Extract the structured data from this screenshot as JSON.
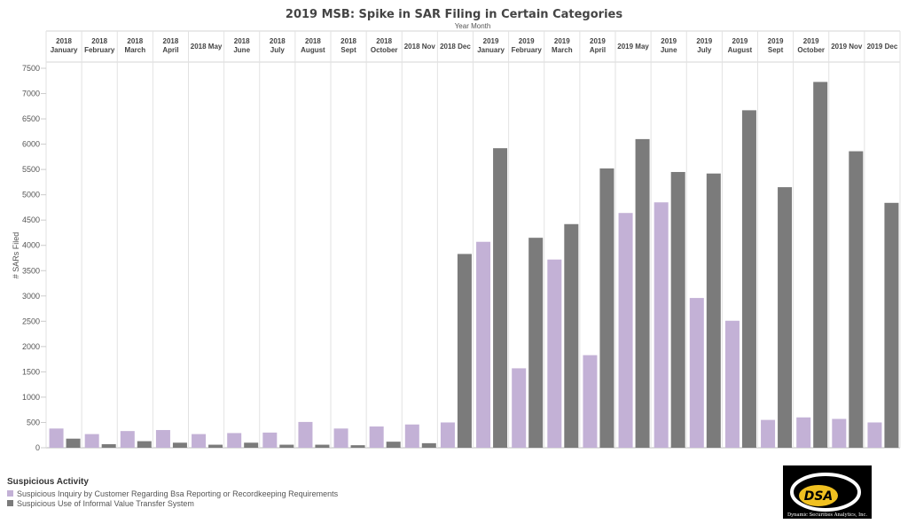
{
  "chart_data": {
    "type": "bar",
    "title": "2019 MSB: Spike in SAR Filing in Certain Categories",
    "top_axis_label": "Year Month",
    "ylabel": "# SARs Filed",
    "ylim": [
      0,
      7500
    ],
    "yticks": [
      0,
      500,
      1000,
      1500,
      2000,
      2500,
      3000,
      3500,
      4000,
      4500,
      5000,
      5500,
      6000,
      6500,
      7000,
      7500
    ],
    "grid": true,
    "legend_placement": "bottom-left",
    "categories": [
      [
        "2018",
        "January"
      ],
      [
        "2018",
        "February"
      ],
      [
        "2018",
        "March"
      ],
      [
        "2018",
        "April"
      ],
      [
        "2018 May"
      ],
      [
        "2018",
        "June"
      ],
      [
        "2018",
        "July"
      ],
      [
        "2018",
        "August"
      ],
      [
        "2018",
        "Sept"
      ],
      [
        "2018",
        "October"
      ],
      [
        "2018 Nov"
      ],
      [
        "2018 Dec"
      ],
      [
        "2019",
        "January"
      ],
      [
        "2019",
        "February"
      ],
      [
        "2019",
        "March"
      ],
      [
        "2019",
        "April"
      ],
      [
        "2019 May"
      ],
      [
        "2019",
        "June"
      ],
      [
        "2019",
        "July"
      ],
      [
        "2019",
        "August"
      ],
      [
        "2019",
        "Sept"
      ],
      [
        "2019",
        "October"
      ],
      [
        "2019 Nov"
      ],
      [
        "2019 Dec"
      ]
    ],
    "series": [
      {
        "name": "Suspicious Inquiry by Customer Regarding Bsa Reporting or Recordkeeping Requirements",
        "color": "#c3b1d6",
        "values": [
          380,
          270,
          330,
          350,
          270,
          290,
          300,
          510,
          380,
          420,
          460,
          500,
          4070,
          1570,
          3720,
          1830,
          4640,
          4850,
          2960,
          2510,
          550,
          600,
          570,
          500
        ]
      },
      {
        "name": "Suspicious Use of Informal Value Transfer System",
        "color": "#7b7b7b",
        "values": [
          180,
          70,
          130,
          100,
          60,
          100,
          60,
          60,
          50,
          120,
          90,
          3830,
          5920,
          4150,
          4420,
          5520,
          6100,
          5450,
          5420,
          6670,
          5150,
          7230,
          5860,
          4840
        ]
      }
    ],
    "legend_title": "Suspicious Activity"
  },
  "logo": {
    "text": "DSA",
    "subtitle": "Dynamic Securities Analytics, Inc."
  }
}
